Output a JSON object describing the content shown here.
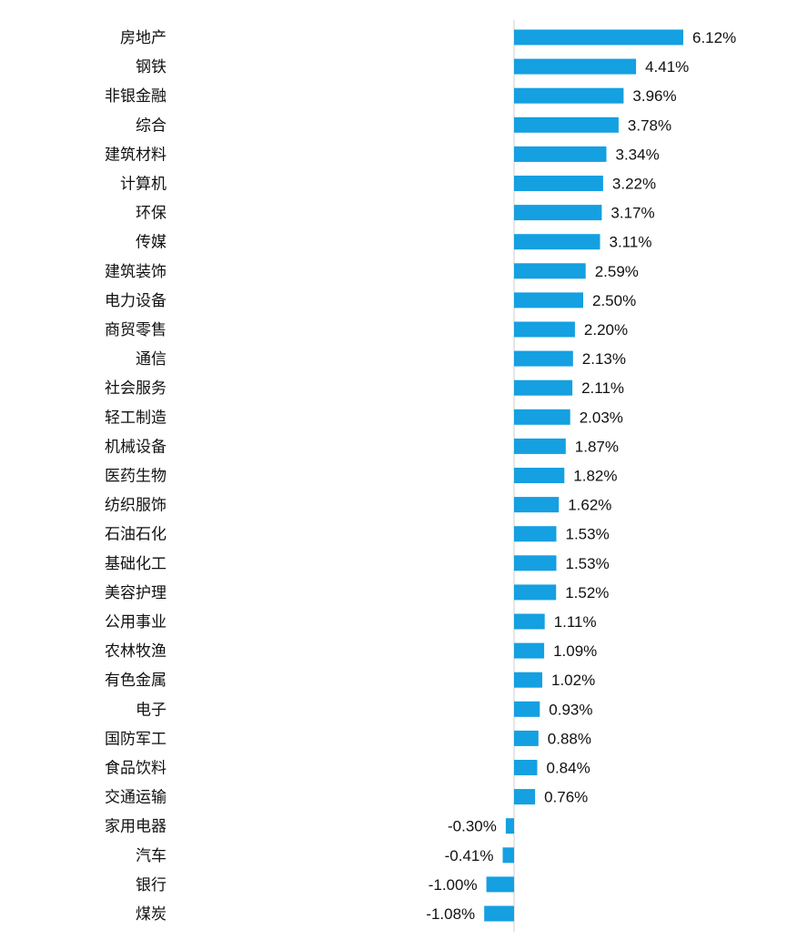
{
  "chart_data": {
    "type": "bar",
    "orientation": "horizontal",
    "categories": [
      "房地产",
      "钢铁",
      "非银金融",
      "综合",
      "建筑材料",
      "计算机",
      "环保",
      "传媒",
      "建筑装饰",
      "电力设备",
      "商贸零售",
      "通信",
      "社会服务",
      "轻工制造",
      "机械设备",
      "医药生物",
      "纺织服饰",
      "石油石化",
      "基础化工",
      "美容护理",
      "公用事业",
      "农林牧渔",
      "有色金属",
      "电子",
      "国防军工",
      "食品饮料",
      "交通运输",
      "家用电器",
      "汽车",
      "银行",
      "煤炭"
    ],
    "values": [
      6.12,
      4.41,
      3.96,
      3.78,
      3.34,
      3.22,
      3.17,
      3.11,
      2.59,
      2.5,
      2.2,
      2.13,
      2.11,
      2.03,
      1.87,
      1.82,
      1.62,
      1.53,
      1.53,
      1.52,
      1.11,
      1.09,
      1.02,
      0.93,
      0.88,
      0.84,
      0.76,
      -0.3,
      -0.41,
      -1.0,
      -1.08
    ],
    "value_labels": [
      "6.12%",
      "4.41%",
      "3.96%",
      "3.78%",
      "3.34%",
      "3.22%",
      "3.17%",
      "3.11%",
      "2.59%",
      "2.50%",
      "2.20%",
      "2.13%",
      "2.11%",
      "2.03%",
      "1.87%",
      "1.82%",
      "1.62%",
      "1.53%",
      "1.53%",
      "1.52%",
      "1.11%",
      "1.09%",
      "1.02%",
      "0.93%",
      "0.88%",
      "0.84%",
      "0.76%",
      "-0.30%",
      "-0.41%",
      "-1.00%",
      "-1.08%"
    ],
    "unit": "%",
    "bar_color": "#14a0e1",
    "axis_color": "#cccccc",
    "grid": false,
    "legend": "none"
  }
}
